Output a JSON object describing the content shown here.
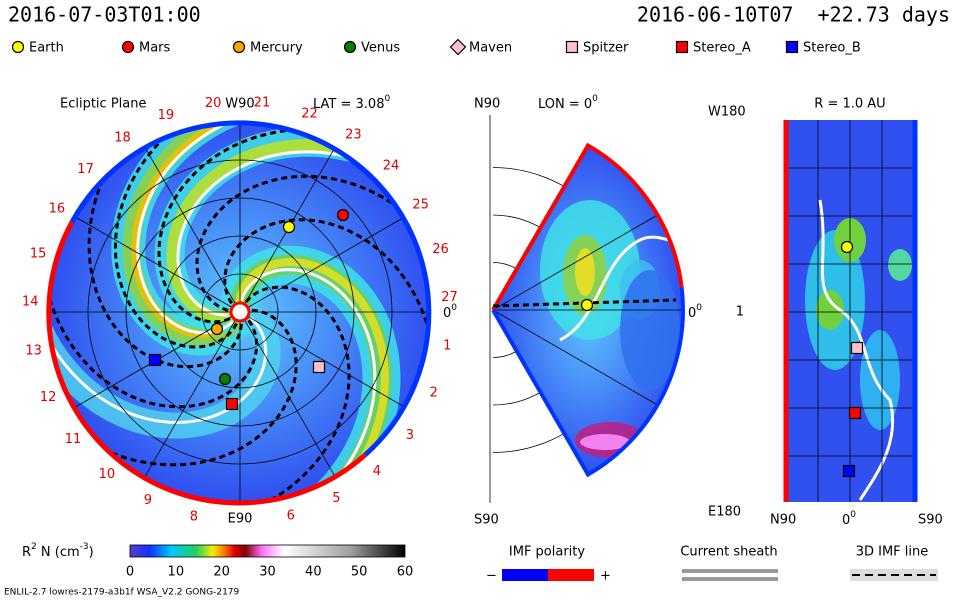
{
  "header": {
    "left": "2016-07-03T01:00",
    "right": "2016-06-10T07  +22.73 days"
  },
  "legend": [
    {
      "label": "Earth",
      "color": "#ffff00",
      "shape": "circle"
    },
    {
      "label": "Mars",
      "color": "#ff0000",
      "shape": "circle"
    },
    {
      "label": "Mercury",
      "color": "#ffa500",
      "shape": "circle"
    },
    {
      "label": "Venus",
      "color": "#008000",
      "shape": "circle"
    },
    {
      "label": "Maven",
      "color": "#ffc0cb",
      "shape": "diamond"
    },
    {
      "label": "Spitzer",
      "color": "#ffc0cb",
      "shape": "square"
    },
    {
      "label": "Stereo_A",
      "color": "#ff0000",
      "shape": "square"
    },
    {
      "label": "Stereo_B",
      "color": "#0000ff",
      "shape": "square"
    }
  ],
  "ecliptic": {
    "title": "Ecliptic Plane",
    "top": "W90",
    "bottom": "E90",
    "right": {
      "text": "0",
      "sup": "0"
    },
    "lat": {
      "text": "LAT = 3.08",
      "sup": "0"
    },
    "longitudes": [
      "1",
      "2",
      "3",
      "4",
      "5",
      "6",
      "8",
      "9",
      "10",
      "11",
      "12",
      "13",
      "14",
      "15",
      "16",
      "17",
      "18",
      "19",
      "20",
      "21",
      "22",
      "23",
      "24",
      "25",
      "26",
      "27"
    ]
  },
  "meridional": {
    "top": "N90",
    "bottom": "S90",
    "right": {
      "text": "0",
      "sup": "0"
    },
    "lon": {
      "text": "LON = 0",
      "sup": "0"
    }
  },
  "radial": {
    "title": "R = 1.0 AU",
    "top_left": "W180",
    "middle_left": "1",
    "bottom_left": "E180",
    "bottom_labels": [
      "N90",
      {
        "text": "0",
        "sup": "0"
      },
      "S90"
    ]
  },
  "colorbar": {
    "label": {
      "r": "R",
      "r_sup": "2",
      "n": " N (cm",
      "unit_sup": "-3",
      "close": ")"
    },
    "ticks": [
      "0",
      "10",
      "20",
      "30",
      "40",
      "50",
      "60"
    ]
  },
  "imf": {
    "title": "IMF polarity",
    "minus": "−",
    "plus": "+"
  },
  "sheath": {
    "title": "Current sheath"
  },
  "imf_line": {
    "title": "3D IMF line"
  },
  "footer": "ENLIL-2.7 lowres-2179-a3b1f WSA_V2.2 GONG-2179"
}
